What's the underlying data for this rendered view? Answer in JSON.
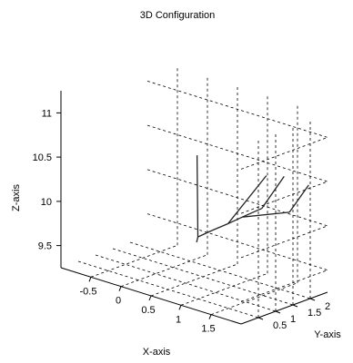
{
  "chart_data": {
    "type": "line3d",
    "title": "3D Configuration",
    "xlabel": "X-axis",
    "ylabel": "Y-axis",
    "zlabel": "Z-axis",
    "xlim": [
      -1,
      2
    ],
    "ylim": [
      0,
      2.5
    ],
    "zlim": [
      9.25,
      11.25
    ],
    "xticks": [
      -0.5,
      0,
      0.5,
      1,
      1.5
    ],
    "yticks": [
      0.5,
      1,
      1.5,
      2
    ],
    "zticks": [
      9.5,
      10,
      10.5,
      11
    ],
    "xtick_labels": [
      "-0.5",
      "0",
      "0.5",
      "1",
      "1.5"
    ],
    "ytick_labels": [
      "0.5",
      "1",
      "1.5",
      "2"
    ],
    "ztick_labels": [
      "9.5",
      "10",
      "10.5",
      "11"
    ],
    "grid": true,
    "segments": [
      {
        "name": "",
        "points": [
          [
            0.66,
            1.04,
            9.74
          ],
          [
            0.78,
            0.87,
            9.85
          ]
        ]
      },
      {
        "name": "",
        "points": [
          [
            0.78,
            0.87,
            9.85
          ],
          [
            0.68,
            1.02,
            10.73
          ]
        ]
      },
      {
        "name": "",
        "points": [
          [
            0.78,
            0.87,
            9.85
          ],
          [
            0.92,
            1.03,
            9.93
          ]
        ]
      },
      {
        "name": "",
        "points": [
          [
            0.92,
            1.03,
            9.93
          ],
          [
            1.16,
            1.08,
            10.05
          ]
        ]
      },
      {
        "name": "",
        "points": [
          [
            1.16,
            1.08,
            10.05
          ],
          [
            1.3,
            1.25,
            10.13
          ]
        ]
      },
      {
        "name": "",
        "points": [
          [
            1.3,
            1.25,
            10.13
          ],
          [
            1.48,
            1.5,
            10.23
          ]
        ]
      },
      {
        "name": "",
        "points": [
          [
            1.48,
            1.5,
            10.23
          ],
          [
            1.72,
            1.73,
            10.61
          ]
        ]
      },
      {
        "name": "",
        "points": [
          [
            1.16,
            1.08,
            10.05
          ],
          [
            1.54,
            1.53,
            10.61
          ]
        ]
      },
      {
        "name": "",
        "points": [
          [
            1.3,
            1.25,
            10.13
          ],
          [
            1.78,
            1.78,
            10.21
          ]
        ]
      },
      {
        "name": "",
        "points": [
          [
            1.78,
            1.78,
            10.21
          ],
          [
            1.98,
            1.99,
            10.53
          ]
        ]
      }
    ]
  }
}
